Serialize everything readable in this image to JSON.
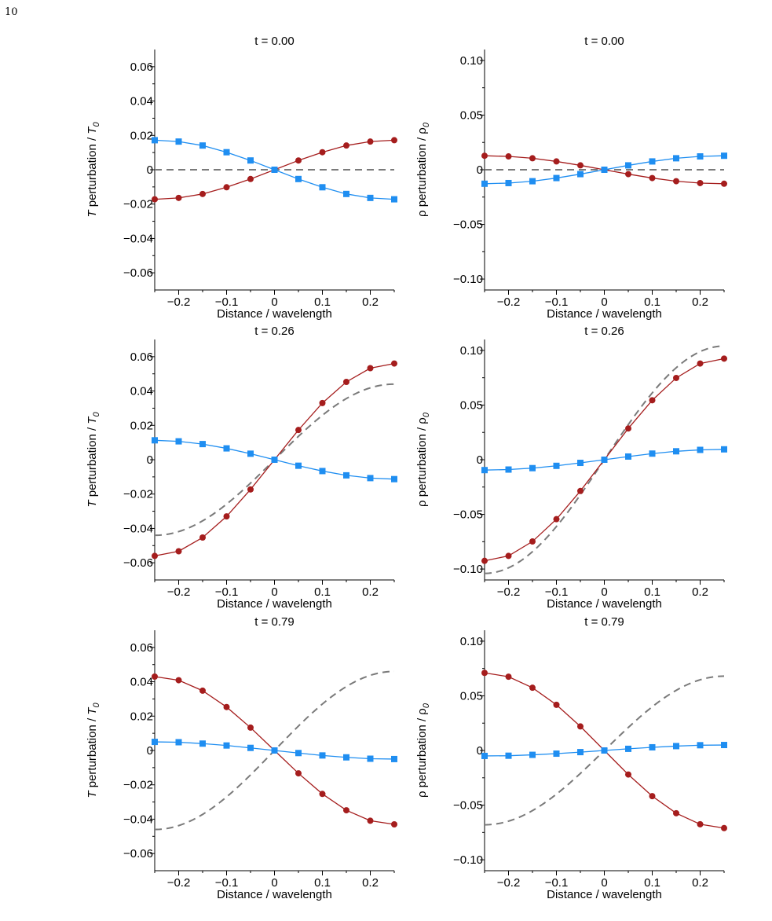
{
  "page_number": "10",
  "colors": {
    "red_series": "#a51d1d",
    "blue_series": "#1f8ef1",
    "dashed": "#7a7a7a",
    "axis": "#000000"
  },
  "chart_data": [
    {
      "type": "line",
      "panel": "T-t0",
      "title": "t = 0.00",
      "ylabel_main": "T",
      "ylabel_mid": " perturbation / ",
      "ylabel_sym": "T",
      "ylabel_sub": "0",
      "xlabel": "Distance / wavelength",
      "xlim": [
        -0.25,
        0.25
      ],
      "ylim": [
        -0.07,
        0.07
      ],
      "xticks": [
        -0.2,
        -0.1,
        0,
        0.1,
        0.2
      ],
      "xtick_labels": [
        "−0.2",
        "−0.1",
        "0",
        "0.1",
        "0.2"
      ],
      "yticks": [
        -0.06,
        -0.04,
        -0.02,
        0,
        0.02,
        0.04,
        0.06
      ],
      "ytick_labels": [
        "−0.06",
        "−0.04",
        "−0.02",
        "0",
        "0.02",
        "0.04",
        "0.06"
      ],
      "x": [
        -0.25,
        -0.2,
        -0.15,
        -0.1,
        -0.05,
        0,
        0.05,
        0.1,
        0.15,
        0.2,
        0.25
      ],
      "series": [
        {
          "marker": "circle",
          "color": "#a51d1d",
          "values": [
            -0.0172,
            -0.0164,
            -0.0141,
            -0.0102,
            -0.0054,
            0,
            0.0054,
            0.0102,
            0.0141,
            0.0164,
            0.0172
          ]
        },
        {
          "marker": "square",
          "color": "#1f8ef1",
          "values": [
            0.0172,
            0.0164,
            0.0141,
            0.0102,
            0.0054,
            0,
            -0.0054,
            -0.0102,
            -0.0141,
            -0.0164,
            -0.0172
          ]
        }
      ],
      "dashed_amplitude": 0
    },
    {
      "type": "line",
      "panel": "rho-t0",
      "title": "t = 0.00",
      "ylabel_main": "ρ",
      "ylabel_mid": " perturbation / ",
      "ylabel_sym": "ρ",
      "ylabel_sub": "0",
      "xlabel": "Distance / wavelength",
      "xlim": [
        -0.25,
        0.25
      ],
      "ylim": [
        -0.11,
        0.11
      ],
      "xticks": [
        -0.2,
        -0.1,
        0,
        0.1,
        0.2
      ],
      "xtick_labels": [
        "−0.2",
        "−0.1",
        "0",
        "0.1",
        "0.2"
      ],
      "yticks": [
        -0.1,
        -0.05,
        0,
        0.05,
        0.1
      ],
      "ytick_labels": [
        "−0.10",
        "−0.05",
        "0",
        "0.05",
        "0.10"
      ],
      "x": [
        -0.25,
        -0.2,
        -0.15,
        -0.1,
        -0.05,
        0,
        0.05,
        0.1,
        0.15,
        0.2,
        0.25
      ],
      "series": [
        {
          "marker": "circle",
          "color": "#a51d1d",
          "values": [
            0.0128,
            0.0122,
            0.0105,
            0.0076,
            0.004,
            0,
            -0.004,
            -0.0076,
            -0.0105,
            -0.0122,
            -0.0128
          ]
        },
        {
          "marker": "square",
          "color": "#1f8ef1",
          "values": [
            -0.0128,
            -0.0122,
            -0.0105,
            -0.0076,
            -0.004,
            0,
            0.004,
            0.0076,
            0.0105,
            0.0122,
            0.0128
          ]
        }
      ],
      "dashed_amplitude": 0
    },
    {
      "type": "line",
      "panel": "T-t026",
      "title": "t = 0.26",
      "ylabel_main": "T",
      "ylabel_mid": " perturbation / ",
      "ylabel_sym": "T",
      "ylabel_sub": "0",
      "xlabel": "Distance / wavelength",
      "xlim": [
        -0.25,
        0.25
      ],
      "ylim": [
        -0.07,
        0.07
      ],
      "xticks": [
        -0.2,
        -0.1,
        0,
        0.1,
        0.2
      ],
      "xtick_labels": [
        "−0.2",
        "−0.1",
        "0",
        "0.1",
        "0.2"
      ],
      "yticks": [
        -0.06,
        -0.04,
        -0.02,
        0,
        0.02,
        0.04,
        0.06
      ],
      "ytick_labels": [
        "−0.06",
        "−0.04",
        "−0.02",
        "0",
        "0.02",
        "0.04",
        "0.06"
      ],
      "x": [
        -0.25,
        -0.2,
        -0.15,
        -0.1,
        -0.05,
        0,
        0.05,
        0.1,
        0.15,
        0.2,
        0.25
      ],
      "series": [
        {
          "marker": "circle",
          "color": "#a51d1d",
          "values": [
            -0.056,
            -0.0533,
            -0.0453,
            -0.033,
            -0.0173,
            0,
            0.0173,
            0.033,
            0.0453,
            0.0533,
            0.056
          ]
        },
        {
          "marker": "square",
          "color": "#1f8ef1",
          "values": [
            0.0113,
            0.0107,
            0.0091,
            0.0066,
            0.0035,
            0,
            -0.0035,
            -0.0066,
            -0.0091,
            -0.0107,
            -0.0113
          ]
        }
      ],
      "dashed_amplitude": 0.044
    },
    {
      "type": "line",
      "panel": "rho-t026",
      "title": "t = 0.26",
      "ylabel_main": "ρ",
      "ylabel_mid": " perturbation / ",
      "ylabel_sym": "ρ",
      "ylabel_sub": "0",
      "xlabel": "Distance / wavelength",
      "xlim": [
        -0.25,
        0.25
      ],
      "ylim": [
        -0.11,
        0.11
      ],
      "xticks": [
        -0.2,
        -0.1,
        0,
        0.1,
        0.2
      ],
      "xtick_labels": [
        "−0.2",
        "−0.1",
        "0",
        "0.1",
        "0.2"
      ],
      "yticks": [
        -0.1,
        -0.05,
        0,
        0.05,
        0.1
      ],
      "ytick_labels": [
        "−0.10",
        "−0.05",
        "0",
        "0.05",
        "0.10"
      ],
      "x": [
        -0.25,
        -0.2,
        -0.15,
        -0.1,
        -0.05,
        0,
        0.05,
        0.1,
        0.15,
        0.2,
        0.25
      ],
      "series": [
        {
          "marker": "circle",
          "color": "#a51d1d",
          "values": [
            -0.0925,
            -0.088,
            -0.0748,
            -0.0544,
            -0.0286,
            0,
            0.0286,
            0.0544,
            0.0748,
            0.088,
            0.0925
          ]
        },
        {
          "marker": "square",
          "color": "#1f8ef1",
          "values": [
            -0.0095,
            -0.009,
            -0.0077,
            -0.0056,
            -0.0029,
            0,
            0.0029,
            0.0056,
            0.0077,
            0.009,
            0.0095
          ]
        }
      ],
      "dashed_amplitude": 0.104
    },
    {
      "type": "line",
      "panel": "T-t079",
      "title": "t = 0.79",
      "ylabel_main": "T",
      "ylabel_mid": " perturbation / ",
      "ylabel_sym": "T",
      "ylabel_sub": "0",
      "xlabel": "Distance / wavelength",
      "xlim": [
        -0.25,
        0.25
      ],
      "ylim": [
        -0.07,
        0.07
      ],
      "xticks": [
        -0.2,
        -0.1,
        0,
        0.1,
        0.2
      ],
      "xtick_labels": [
        "−0.2",
        "−0.1",
        "0",
        "0.1",
        "0.2"
      ],
      "yticks": [
        -0.06,
        -0.04,
        -0.02,
        0,
        0.02,
        0.04,
        0.06
      ],
      "ytick_labels": [
        "−0.06",
        "−0.04",
        "−0.02",
        "0",
        "0.02",
        "0.04",
        "0.06"
      ],
      "x": [
        -0.25,
        -0.2,
        -0.15,
        -0.1,
        -0.05,
        0,
        0.05,
        0.1,
        0.15,
        0.2,
        0.25
      ],
      "series": [
        {
          "marker": "circle",
          "color": "#a51d1d",
          "values": [
            0.043,
            0.0409,
            0.0348,
            0.0253,
            0.0133,
            0,
            -0.0133,
            -0.0253,
            -0.0348,
            -0.0409,
            -0.043
          ]
        },
        {
          "marker": "square",
          "color": "#1f8ef1",
          "values": [
            0.005,
            0.0048,
            0.004,
            0.0029,
            0.0015,
            0,
            -0.0015,
            -0.0029,
            -0.004,
            -0.0048,
            -0.005
          ]
        }
      ],
      "dashed_amplitude": 0.046
    },
    {
      "type": "line",
      "panel": "rho-t079",
      "title": "t = 0.79",
      "ylabel_main": "ρ",
      "ylabel_mid": " perturbation / ",
      "ylabel_sym": "ρ",
      "ylabel_sub": "0",
      "xlabel": "Distance / wavelength",
      "xlim": [
        -0.25,
        0.25
      ],
      "ylim": [
        -0.11,
        0.11
      ],
      "xticks": [
        -0.2,
        -0.1,
        0,
        0.1,
        0.2
      ],
      "xtick_labels": [
        "−0.2",
        "−0.1",
        "0",
        "0.1",
        "0.2"
      ],
      "yticks": [
        -0.1,
        -0.05,
        0,
        0.05,
        0.1
      ],
      "ytick_labels": [
        "−0.10",
        "−0.05",
        "0",
        "0.05",
        "0.10"
      ],
      "x": [
        -0.25,
        -0.2,
        -0.15,
        -0.1,
        -0.05,
        0,
        0.05,
        0.1,
        0.15,
        0.2,
        0.25
      ],
      "series": [
        {
          "marker": "circle",
          "color": "#a51d1d",
          "values": [
            0.071,
            0.0675,
            0.0574,
            0.0418,
            0.022,
            0,
            -0.022,
            -0.0418,
            -0.0574,
            -0.0675,
            -0.071
          ]
        },
        {
          "marker": "square",
          "color": "#1f8ef1",
          "values": [
            -0.005,
            -0.0048,
            -0.004,
            -0.0029,
            -0.0015,
            0,
            0.0015,
            0.0029,
            0.004,
            0.0048,
            0.005
          ]
        }
      ],
      "dashed_amplitude": 0.068
    }
  ]
}
